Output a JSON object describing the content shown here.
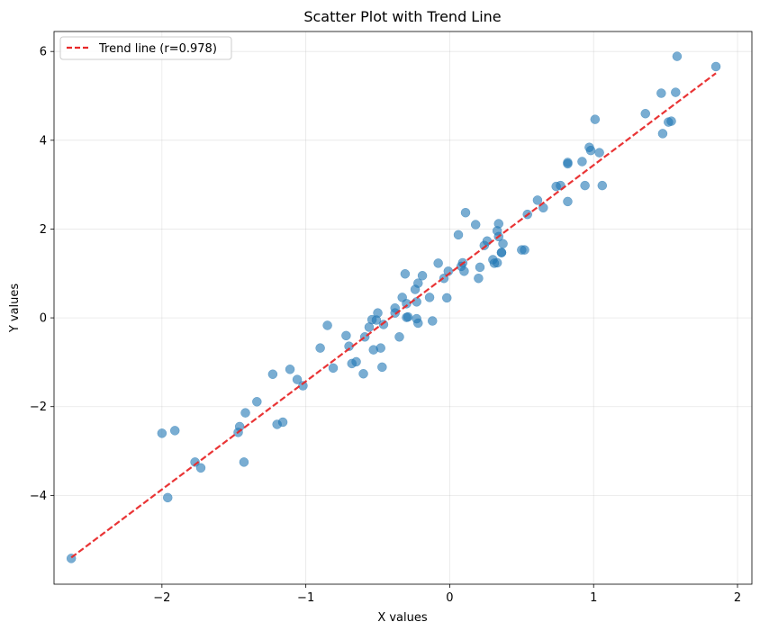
{
  "chart_data": {
    "type": "scatter",
    "title": "Scatter Plot with Trend Line",
    "xlabel": "X values",
    "ylabel": "Y values",
    "xlim": [
      -2.75,
      2.1
    ],
    "ylim": [
      -6.0,
      6.45
    ],
    "x_ticks": [
      -2,
      -1,
      0,
      1,
      2
    ],
    "x_tick_labels": [
      "−2",
      "−1",
      "0",
      "1",
      "2"
    ],
    "y_ticks": [
      -4,
      -2,
      0,
      2,
      4,
      6
    ],
    "y_tick_labels": [
      "−4",
      "−2",
      "0",
      "2",
      "4",
      "6"
    ],
    "grid": true,
    "legend_position": "top-left",
    "colors": {
      "points": "#1f77b4",
      "trend": "#e8292a"
    },
    "series": [
      {
        "kind": "points",
        "x": [
          -2.63,
          -2.0,
          -1.96,
          -1.91,
          -1.77,
          -1.73,
          -1.47,
          -1.46,
          -1.43,
          -1.42,
          -1.34,
          -1.23,
          -1.2,
          -1.16,
          -1.11,
          -1.06,
          -1.02,
          -0.9,
          -0.85,
          -0.81,
          -0.72,
          -0.7,
          -0.68,
          -0.65,
          -0.6,
          -0.59,
          -0.56,
          -0.54,
          -0.53,
          -0.51,
          -0.5,
          -0.48,
          -0.47,
          -0.46,
          -0.38,
          -0.38,
          -0.35,
          -0.33,
          -0.31,
          -0.3,
          -0.29,
          -0.3,
          -0.24,
          -0.23,
          -0.23,
          -0.22,
          -0.22,
          -0.19,
          -0.14,
          -0.12,
          -0.08,
          -0.04,
          -0.02,
          -0.01,
          0.06,
          0.08,
          0.09,
          0.1,
          0.11,
          0.18,
          0.2,
          0.21,
          0.24,
          0.26,
          0.3,
          0.31,
          0.33,
          0.33,
          0.34,
          0.34,
          0.36,
          0.36,
          0.37,
          0.5,
          0.52,
          0.54,
          0.61,
          0.65,
          0.74,
          0.77,
          0.82,
          0.82,
          0.82,
          0.92,
          0.94,
          0.97,
          0.98,
          1.01,
          1.04,
          1.06,
          1.36,
          1.47,
          1.48,
          1.52,
          1.54,
          1.57,
          1.58,
          1.85
        ],
        "y": [
          -5.42,
          -2.6,
          -4.05,
          -2.54,
          -3.25,
          -3.38,
          -2.58,
          -2.45,
          -3.25,
          -2.14,
          -1.89,
          -1.27,
          -2.4,
          -2.35,
          -1.16,
          -1.39,
          -1.53,
          -0.68,
          -0.17,
          -1.13,
          -0.4,
          -0.64,
          -1.03,
          -0.99,
          -1.26,
          -0.43,
          -0.21,
          -0.04,
          -0.72,
          -0.05,
          0.11,
          -0.68,
          -1.11,
          -0.15,
          0.22,
          0.11,
          -0.43,
          0.46,
          0.99,
          0.32,
          0.02,
          0.01,
          0.64,
          0.36,
          -0.02,
          -0.12,
          0.78,
          0.95,
          0.46,
          -0.07,
          1.23,
          0.89,
          0.45,
          1.05,
          1.87,
          1.16,
          1.24,
          1.05,
          2.37,
          2.1,
          0.89,
          1.14,
          1.63,
          1.73,
          1.31,
          1.23,
          1.24,
          1.96,
          1.83,
          2.12,
          1.47,
          1.47,
          1.67,
          1.53,
          1.53,
          2.33,
          2.65,
          2.48,
          2.96,
          2.98,
          2.62,
          3.5,
          3.47,
          3.52,
          2.98,
          3.84,
          3.77,
          4.47,
          3.72,
          2.98,
          4.6,
          5.06,
          4.15,
          4.41,
          4.43,
          5.08,
          5.89,
          5.66
        ]
      },
      {
        "kind": "trend",
        "name": "Trend line (r=0.978)",
        "x": [
          -2.63,
          1.85
        ],
        "y": [
          -5.4,
          5.51
        ]
      }
    ]
  }
}
